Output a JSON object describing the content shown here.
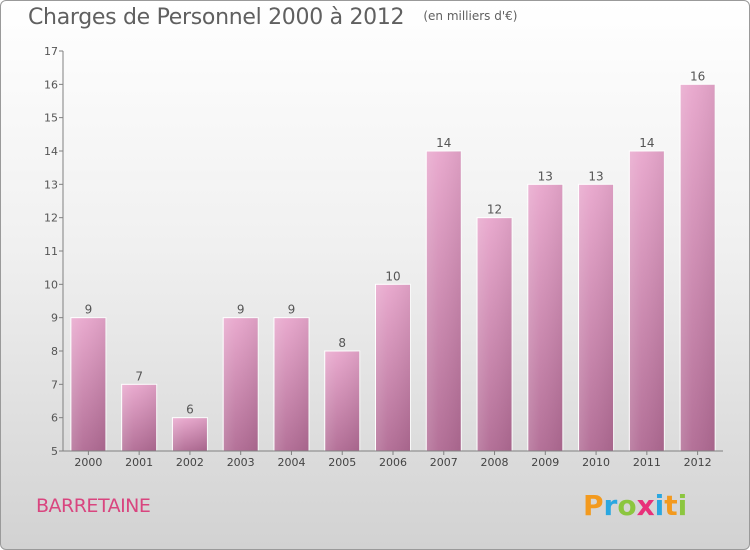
{
  "header": {
    "title": "Charges de Personnel 2000 à 2012",
    "subtitle": "(en milliers d'€)"
  },
  "commune": "BARRETAINE",
  "logo": {
    "text": "Proxiti",
    "letters": [
      {
        "ch": "P",
        "color": "#f39a1e"
      },
      {
        "ch": "r",
        "color": "#2aa7e0"
      },
      {
        "ch": "o",
        "color": "#8cc63f"
      },
      {
        "ch": "x",
        "color": "#e8307a"
      },
      {
        "ch": "i",
        "color": "#2aa7e0"
      },
      {
        "ch": "t",
        "color": "#f39a1e"
      },
      {
        "ch": "i",
        "color": "#8cc63f"
      }
    ]
  },
  "chart_data": {
    "type": "bar",
    "title": "Charges de Personnel 2000 à 2012",
    "subtitle": "(en milliers d'€)",
    "categories": [
      "2000",
      "2001",
      "2002",
      "2003",
      "2004",
      "2005",
      "2006",
      "2007",
      "2008",
      "2009",
      "2010",
      "2011",
      "2012"
    ],
    "values": [
      9,
      7,
      6,
      9,
      9,
      8,
      10,
      14,
      12,
      13,
      13,
      14,
      16
    ],
    "data_labels": [
      "9",
      "7",
      "6",
      "9",
      "9",
      "8",
      "10",
      "14",
      "12",
      "13",
      "13",
      "14",
      "16"
    ],
    "ylim": [
      5,
      17
    ],
    "yticks": [
      5,
      6,
      7,
      8,
      9,
      10,
      11,
      12,
      13,
      14,
      15,
      16,
      17
    ],
    "grid": false,
    "bar_color_top": "#e8a6cc",
    "bar_color_bottom": "#b06a93"
  }
}
